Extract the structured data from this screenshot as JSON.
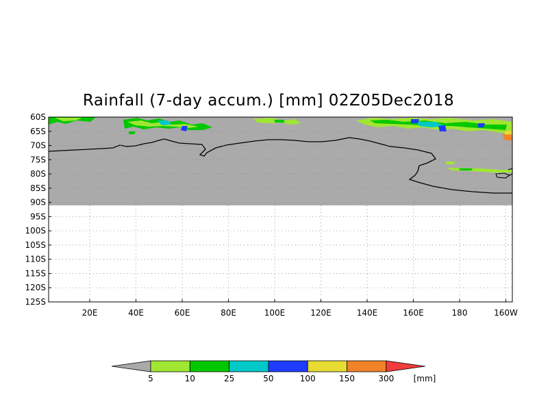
{
  "title": "Rainfall (7-day accum.) [mm] 02Z05Dec2018",
  "map": {
    "lat_labels": [
      "60S",
      "65S",
      "70S",
      "75S",
      "80S",
      "85S",
      "90S",
      "95S",
      "100S",
      "105S",
      "110S",
      "115S",
      "120S",
      "125S"
    ],
    "lon_labels": [
      "20E",
      "40E",
      "60E",
      "80E",
      "100E",
      "120E",
      "140E",
      "160E",
      "180",
      "160W"
    ],
    "land_mask_color": "#aaaaaa",
    "coastline_color": "#000000",
    "grid": "dotted"
  },
  "colorbar": {
    "labels": [
      "5",
      "10",
      "25",
      "50",
      "100",
      "150",
      "300"
    ],
    "unit": "[mm]",
    "colors": [
      "#a0e632",
      "#00c800",
      "#00c8c8",
      "#1e3cff",
      "#e6dc32",
      "#f08228",
      "#f03c3c"
    ],
    "under_color": "#aaaaaa"
  }
}
